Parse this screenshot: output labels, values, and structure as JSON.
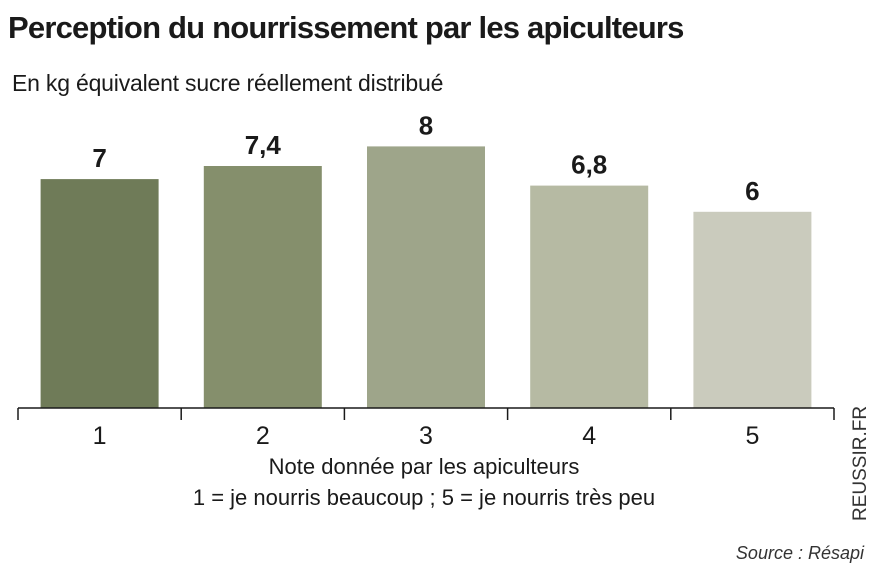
{
  "chart_data": {
    "type": "bar",
    "title": "Perception du nourrissement par les apiculteurs",
    "subtitle": "En kg équivalent sucre réellement distribué",
    "categories": [
      "1",
      "2",
      "3",
      "4",
      "5"
    ],
    "values": [
      7,
      7.4,
      8,
      6.8,
      6
    ],
    "value_labels": [
      "7",
      "7,4",
      "8",
      "6,8",
      "6"
    ],
    "xlabel": [
      "Note donnée par les apiculteurs",
      "1 = je nourris beaucoup ; 5 = je nourris très peu"
    ],
    "ylabel": "",
    "ylim": [
      0,
      8.5
    ],
    "grid": false,
    "legend": "none",
    "colors": [
      "#6f7b58",
      "#858f6c",
      "#9ea58a",
      "#b6baa3",
      "#cacbbd"
    ]
  },
  "watermark": "REUSSIR.FR",
  "source": "Source : Résapi"
}
